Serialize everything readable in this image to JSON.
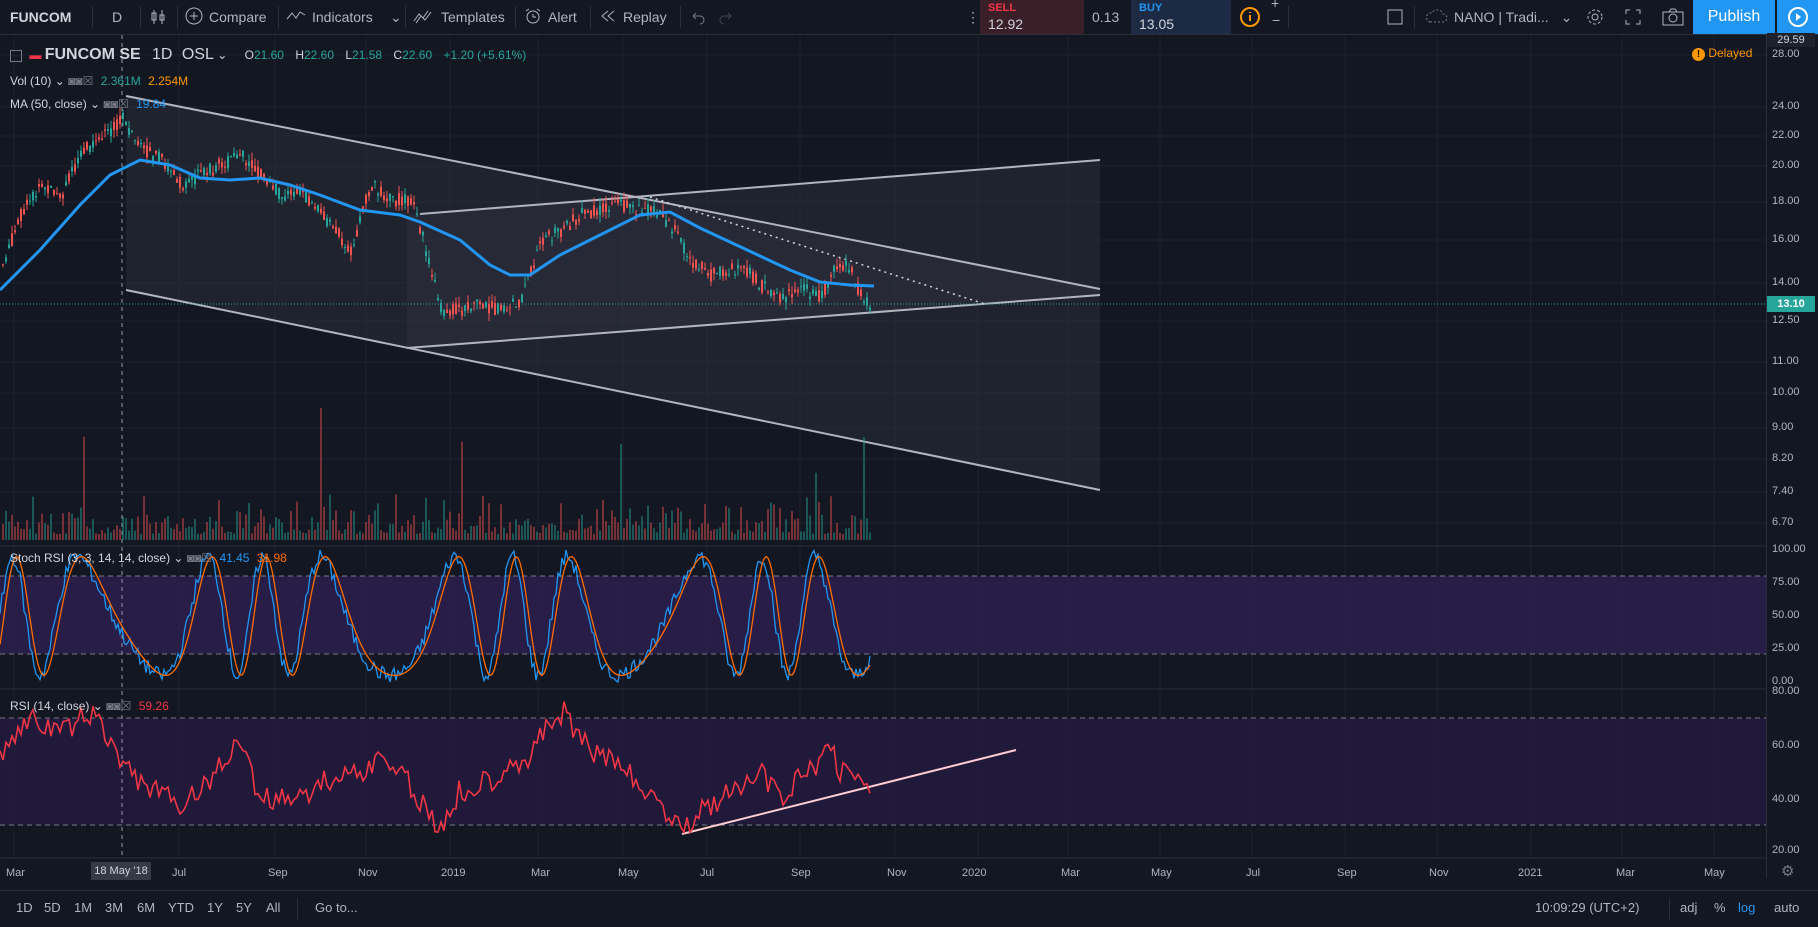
{
  "toolbar": {
    "symbol": "FUNCOM",
    "interval": "D",
    "compare": "Compare",
    "indicators": "Indicators",
    "templates": "Templates",
    "alert": "Alert",
    "replay": "Replay",
    "sell_label": "SELL",
    "sell_price": "12.92",
    "spread": "0.13",
    "buy_label": "BUY",
    "buy_price": "13.05",
    "layout_name": "NANO | Tradi...",
    "publish": "Publish"
  },
  "legend": {
    "title": "FUNCOM SE",
    "interval": "1D",
    "exchange": "OSL",
    "o_label": "O",
    "o": "21.60",
    "h_label": "H",
    "h": "22.60",
    "l_label": "L",
    "l": "21.58",
    "c_label": "C",
    "c": "22.60",
    "change": "+1.20 (+5.61%)",
    "vol_name": "Vol (10)",
    "vol_val1": "2.361M",
    "vol_val2": "2.254M",
    "ma_name": "MA (50, close)",
    "ma_val": "19.84",
    "stoch_name": "Stoch RSI (3, 3, 14, 14, close)",
    "stoch_k": "41.45",
    "stoch_d": "31.98",
    "rsi_name": "RSI (14, close)",
    "rsi_val": "59.26",
    "delayed": "Delayed"
  },
  "price_axis": {
    "top": "29.59",
    "current": "13.10",
    "labels": [
      "28.00",
      "24.00",
      "22.00",
      "20.00",
      "18.00",
      "16.00",
      "14.00",
      "12.50",
      "11.00",
      "10.00",
      "9.00",
      "8.20",
      "7.40",
      "6.70"
    ]
  },
  "stoch_axis": [
    "100.00",
    "75.00",
    "50.00",
    "25.00",
    "0.00"
  ],
  "rsi_axis": [
    "80.00",
    "60.00",
    "40.00",
    "20.00"
  ],
  "time_axis": [
    "Mar",
    "Jul",
    "Sep",
    "Nov",
    "2019",
    "Mar",
    "May",
    "Jul",
    "Sep",
    "Nov",
    "2020",
    "Mar",
    "May",
    "Jul",
    "Sep",
    "Nov",
    "2021",
    "Mar",
    "May"
  ],
  "crosshair_date": "18 May '18",
  "bottom": {
    "ranges": [
      "1D",
      "5D",
      "1M",
      "3M",
      "6M",
      "YTD",
      "1Y",
      "5Y",
      "All"
    ],
    "goto": "Go to...",
    "time": "10:09:29 (UTC+2)",
    "adj": "adj",
    "pct": "%",
    "log": "log",
    "auto": "auto"
  },
  "colors": {
    "background": "#131722",
    "up": "#26a69a",
    "down": "#ef5350",
    "ma": "#2196f3",
    "rsi": "#f23645",
    "stoch_k": "#2196f3",
    "stoch_d": "#ff6d00",
    "band": "#2a1e4a"
  }
}
